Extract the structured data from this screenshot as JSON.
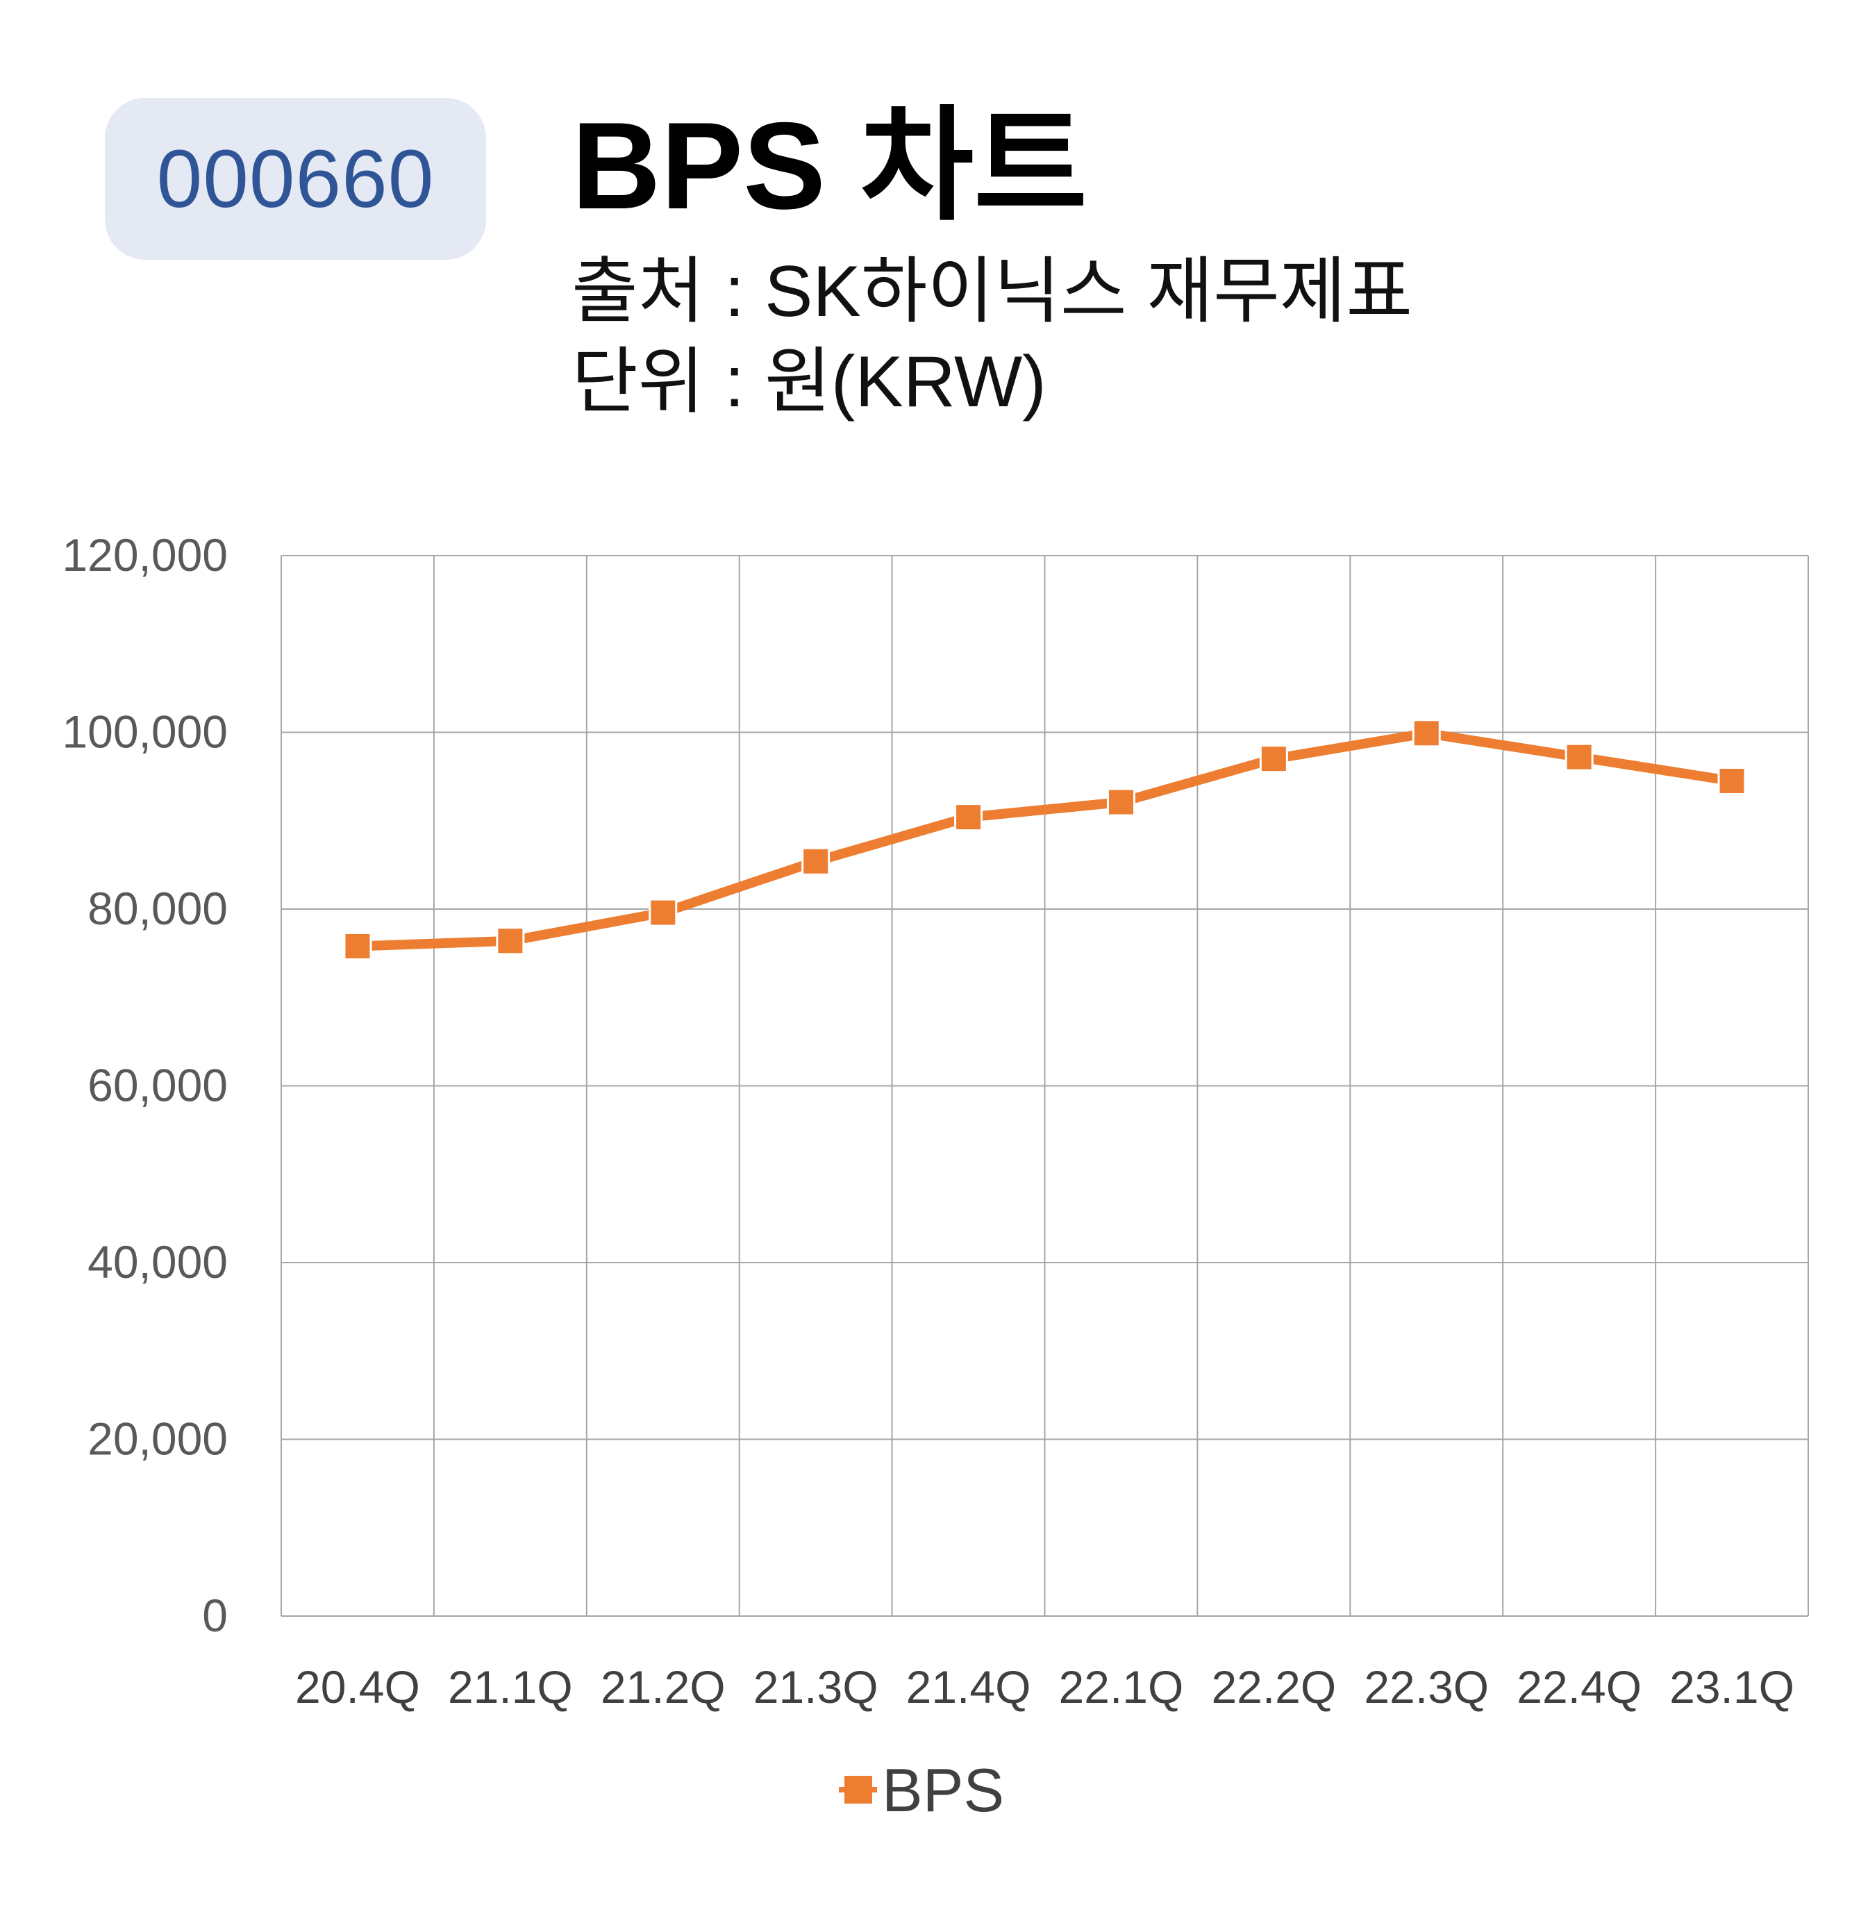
{
  "badge": {
    "code": "000660"
  },
  "header": {
    "title": "BPS 차트",
    "source": "출처 : SK하이닉스 재무제표",
    "unit": "단위 : 원(KRW)"
  },
  "colors": {
    "series": "#ed7d31",
    "grid": "#a6a6a6",
    "badge_bg": "#e4e9f3",
    "badge_text": "#2f5597"
  },
  "chart_data": {
    "type": "line",
    "categories": [
      "20.4Q",
      "21.1Q",
      "21.2Q",
      "21.3Q",
      "21.4Q",
      "22.1Q",
      "22.2Q",
      "22.3Q",
      "22.4Q",
      "23.1Q"
    ],
    "series": [
      {
        "name": "BPS",
        "marker": "square",
        "values": [
          75800,
          76400,
          79600,
          85400,
          90400,
          92100,
          97000,
          99900,
          97200,
          94500
        ]
      }
    ],
    "ylim": [
      0,
      120000
    ],
    "yticks": [
      "0",
      "20,000",
      "40,000",
      "60,000",
      "80,000",
      "100,000",
      "120,000"
    ],
    "ytick_values": [
      0,
      20000,
      40000,
      60000,
      80000,
      100000,
      120000
    ],
    "grid": true,
    "legend": "bottom"
  }
}
